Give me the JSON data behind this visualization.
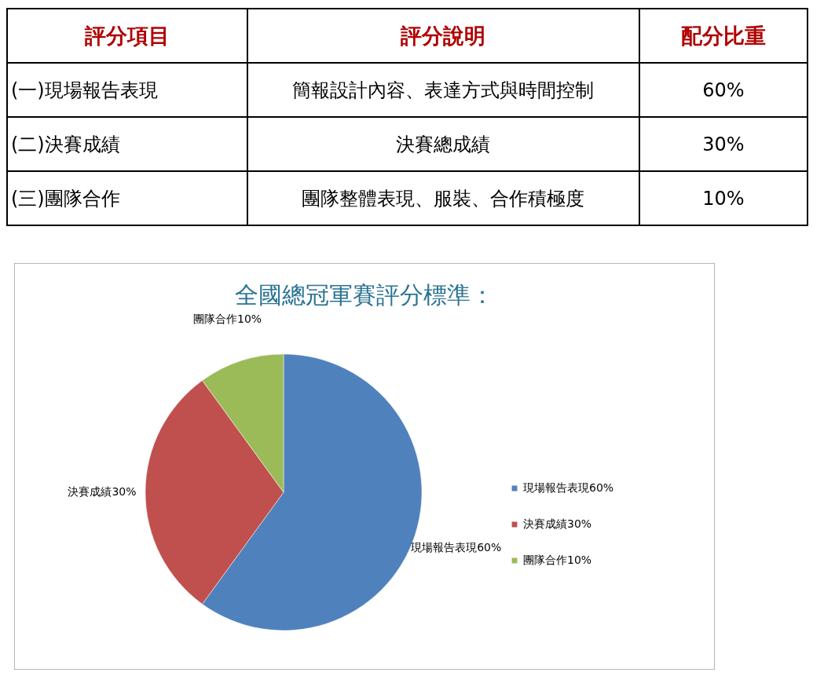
{
  "chart_data": {
    "type": "pie",
    "title": "全國總冠軍賽評分標準：",
    "categories": [
      "現場報告表現60%",
      "決賽成績30%",
      "團隊合作10%"
    ],
    "values": [
      60,
      30,
      10
    ],
    "colors": [
      "#4f81bd",
      "#c0504d",
      "#9bbb59"
    ],
    "legend": "right",
    "annotations": [
      "評分項目",
      "評分說明",
      "配分比重",
      "(一)現場報告表現",
      "簡報設計內容、表達方式與時間控制",
      "60%",
      "(二)決賽成績",
      "決賽總成績",
      "30%",
      "(三)團隊合作",
      "團隊整體表現、服裝、合作積極度",
      "10%"
    ]
  }
}
